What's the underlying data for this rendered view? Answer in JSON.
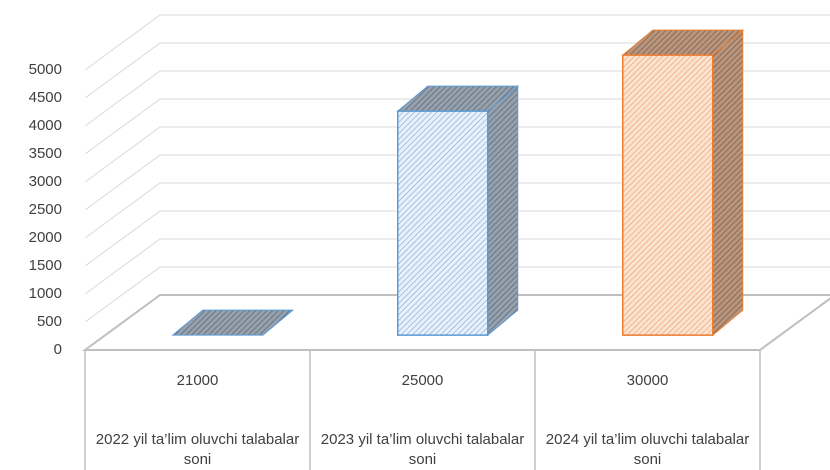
{
  "chart_data": {
    "type": "bar3d",
    "categories": [
      [
        "21000",
        "2022 yil  ta’lim oluvchi talabalar soni"
      ],
      [
        "25000",
        "2023 yil  ta’lim oluvchi talabalar soni"
      ],
      [
        "30000",
        "2024 yil  ta’lim oluvchi talabalar soni"
      ]
    ],
    "values": [
      0,
      4000,
      5000
    ],
    "colors": [
      "#5b9bd5",
      "#5b9bd5",
      "#ed7d31"
    ],
    "ylim": [
      0,
      5000
    ],
    "yticks": [
      0,
      500,
      1000,
      1500,
      2000,
      2500,
      3000,
      3500,
      4000,
      4500,
      5000
    ],
    "grid": true
  }
}
